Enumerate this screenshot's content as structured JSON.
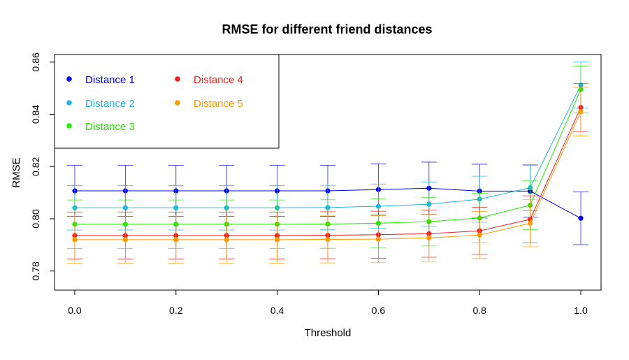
{
  "chart_data": {
    "type": "line",
    "title": "RMSE for different friend distances",
    "xlabel": "Threshold",
    "ylabel": "RMSE",
    "xlim": [
      -0.04,
      1.04
    ],
    "ylim": [
      0.7727,
      0.8629
    ],
    "x_ticks": [
      "0.0",
      "0.2",
      "0.4",
      "0.6",
      "0.8",
      "1.0"
    ],
    "y_ticks": [
      "0.78",
      "0.80",
      "0.82",
      "0.84",
      "0.86"
    ],
    "x": [
      0.0,
      0.1,
      0.2,
      0.3,
      0.4,
      0.5,
      0.6,
      0.7,
      0.8,
      0.9,
      1.0
    ],
    "legend_position": "top-left",
    "error_bars": true,
    "series": [
      {
        "name": "Distance 1",
        "color": "#0000ee",
        "values": [
          0.8107,
          0.8107,
          0.8107,
          0.8107,
          0.8107,
          0.8107,
          0.8112,
          0.8117,
          0.8106,
          0.8106,
          0.8002
        ],
        "errors": [
          0.0098,
          0.0098,
          0.0098,
          0.0098,
          0.0098,
          0.0098,
          0.0098,
          0.01,
          0.0103,
          0.01,
          0.0101
        ]
      },
      {
        "name": "Distance 2",
        "color": "#1eb4e6",
        "values": [
          0.8042,
          0.8042,
          0.8042,
          0.8042,
          0.8042,
          0.8043,
          0.8048,
          0.8056,
          0.8075,
          0.8119,
          0.8512
        ],
        "errors": [
          0.0085,
          0.0085,
          0.0085,
          0.0085,
          0.0085,
          0.0085,
          0.0085,
          0.0085,
          0.0088,
          0.0088,
          0.0088
        ]
      },
      {
        "name": "Distance 3",
        "color": "#22ee00",
        "values": [
          0.7979,
          0.7979,
          0.7979,
          0.7979,
          0.7979,
          0.798,
          0.7983,
          0.7989,
          0.8003,
          0.8052,
          0.8495
        ],
        "errors": [
          0.0093,
          0.0093,
          0.0093,
          0.0093,
          0.0093,
          0.0093,
          0.0093,
          0.0093,
          0.0095,
          0.0093,
          0.009
        ]
      },
      {
        "name": "Distance 4",
        "color": "#ee2222",
        "values": [
          0.7936,
          0.7936,
          0.7936,
          0.7936,
          0.7936,
          0.7937,
          0.7939,
          0.7943,
          0.7954,
          0.7998,
          0.8426
        ],
        "errors": [
          0.009,
          0.009,
          0.009,
          0.009,
          0.009,
          0.009,
          0.009,
          0.009,
          0.009,
          0.009,
          0.0092
        ]
      },
      {
        "name": "Distance 5",
        "color": "#ff9900",
        "values": [
          0.792,
          0.792,
          0.792,
          0.792,
          0.792,
          0.7921,
          0.7922,
          0.7927,
          0.7938,
          0.7983,
          0.841
        ],
        "errors": [
          0.009,
          0.009,
          0.009,
          0.009,
          0.009,
          0.009,
          0.009,
          0.009,
          0.009,
          0.009,
          0.0093
        ]
      }
    ]
  }
}
